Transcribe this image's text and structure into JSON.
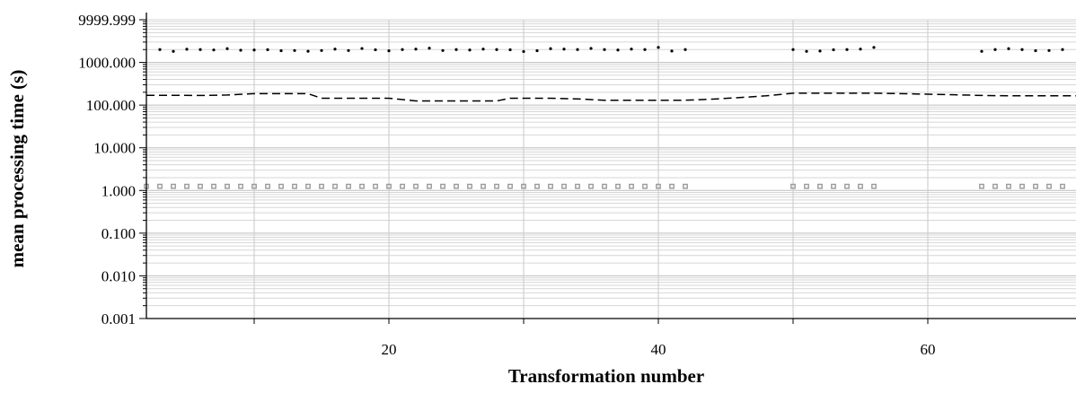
{
  "chart_data": {
    "type": "scatter",
    "xlabel": "Transformation number",
    "ylabel": "mean processing time (s)",
    "x_scale": "linear",
    "y_scale": "log",
    "xlim": [
      2,
      71
    ],
    "ylim": [
      0.001,
      9999.999
    ],
    "x_ticks": [
      {
        "value": 20,
        "label": "20"
      },
      {
        "value": 40,
        "label": "40"
      },
      {
        "value": 60,
        "label": "60"
      }
    ],
    "x_minor_ticks": [
      10,
      30,
      50
    ],
    "y_ticks": [
      {
        "value": 0.001,
        "label": "0.001"
      },
      {
        "value": 0.01,
        "label": "0.010"
      },
      {
        "value": 0.1,
        "label": "0.100"
      },
      {
        "value": 1,
        "label": "1.000"
      },
      {
        "value": 10,
        "label": "10.000"
      },
      {
        "value": 100,
        "label": "100.000"
      },
      {
        "value": 1000,
        "label": "1000.000"
      },
      {
        "value": 9999.999,
        "label": "9999.999"
      }
    ],
    "grid": true,
    "legend": "none",
    "series": [
      {
        "style": "dotted",
        "color": "#000000",
        "points": [
          [
            3,
            2000
          ],
          [
            4,
            1820
          ],
          [
            5,
            2040
          ],
          [
            6,
            2000
          ],
          [
            7,
            1960
          ],
          [
            8,
            2100
          ],
          [
            9,
            1930
          ],
          [
            10,
            1950
          ],
          [
            11,
            1990
          ],
          [
            12,
            1880
          ],
          [
            13,
            1900
          ],
          [
            14,
            1830
          ],
          [
            15,
            1900
          ],
          [
            16,
            2050
          ],
          [
            17,
            1900
          ],
          [
            18,
            2120
          ],
          [
            19,
            1980
          ],
          [
            20,
            1870
          ],
          [
            21,
            2000
          ],
          [
            22,
            2050
          ],
          [
            23,
            2150
          ],
          [
            24,
            1900
          ],
          [
            25,
            2000
          ],
          [
            26,
            1950
          ],
          [
            27,
            2050
          ],
          [
            28,
            2000
          ],
          [
            29,
            1980
          ],
          [
            30,
            1800
          ],
          [
            31,
            1880
          ],
          [
            32,
            2100
          ],
          [
            33,
            2050
          ],
          [
            34,
            2000
          ],
          [
            35,
            2130
          ],
          [
            36,
            2000
          ],
          [
            37,
            1950
          ],
          [
            38,
            2050
          ],
          [
            39,
            2000
          ],
          [
            40,
            2250
          ],
          [
            41,
            1850
          ],
          [
            42,
            2000
          ],
          [
            50,
            2000
          ],
          [
            51,
            1820
          ],
          [
            52,
            1850
          ],
          [
            53,
            1980
          ],
          [
            54,
            2000
          ],
          [
            55,
            2050
          ],
          [
            56,
            2250
          ],
          [
            64,
            1820
          ],
          [
            65,
            2000
          ],
          [
            66,
            2100
          ],
          [
            67,
            2000
          ],
          [
            68,
            1880
          ],
          [
            69,
            1900
          ],
          [
            70,
            2000
          ]
        ]
      },
      {
        "style": "dashed",
        "color": "#000000",
        "points": [
          [
            2,
            170
          ],
          [
            4,
            170
          ],
          [
            6,
            168
          ],
          [
            8,
            172
          ],
          [
            10,
            185
          ],
          [
            12,
            185
          ],
          [
            14,
            185
          ],
          [
            15,
            145
          ],
          [
            16,
            145
          ],
          [
            18,
            145
          ],
          [
            20,
            145
          ],
          [
            22,
            125
          ],
          [
            24,
            125
          ],
          [
            26,
            125
          ],
          [
            28,
            125
          ],
          [
            29,
            145
          ],
          [
            30,
            145
          ],
          [
            32,
            145
          ],
          [
            34,
            140
          ],
          [
            36,
            130
          ],
          [
            38,
            130
          ],
          [
            40,
            130
          ],
          [
            42,
            130
          ],
          [
            44,
            138
          ],
          [
            46,
            150
          ],
          [
            48,
            165
          ],
          [
            50,
            190
          ],
          [
            52,
            190
          ],
          [
            54,
            190
          ],
          [
            56,
            190
          ],
          [
            58,
            185
          ],
          [
            60,
            180
          ],
          [
            62,
            175
          ],
          [
            64,
            168
          ],
          [
            66,
            165
          ],
          [
            68,
            165
          ],
          [
            71,
            165
          ]
        ]
      },
      {
        "style": "square-markers",
        "color": "#999999",
        "points": [
          [
            2,
            1.25
          ],
          [
            3,
            1.25
          ],
          [
            4,
            1.25
          ],
          [
            5,
            1.25
          ],
          [
            6,
            1.25
          ],
          [
            7,
            1.25
          ],
          [
            8,
            1.25
          ],
          [
            9,
            1.25
          ],
          [
            10,
            1.25
          ],
          [
            11,
            1.25
          ],
          [
            12,
            1.25
          ],
          [
            13,
            1.25
          ],
          [
            14,
            1.25
          ],
          [
            15,
            1.25
          ],
          [
            16,
            1.25
          ],
          [
            17,
            1.25
          ],
          [
            18,
            1.25
          ],
          [
            19,
            1.25
          ],
          [
            20,
            1.25
          ],
          [
            21,
            1.25
          ],
          [
            22,
            1.25
          ],
          [
            23,
            1.25
          ],
          [
            24,
            1.25
          ],
          [
            25,
            1.25
          ],
          [
            26,
            1.25
          ],
          [
            27,
            1.25
          ],
          [
            28,
            1.25
          ],
          [
            29,
            1.25
          ],
          [
            30,
            1.25
          ],
          [
            31,
            1.25
          ],
          [
            32,
            1.25
          ],
          [
            33,
            1.25
          ],
          [
            34,
            1.25
          ],
          [
            35,
            1.25
          ],
          [
            36,
            1.25
          ],
          [
            37,
            1.25
          ],
          [
            38,
            1.25
          ],
          [
            39,
            1.25
          ],
          [
            40,
            1.25
          ],
          [
            41,
            1.25
          ],
          [
            42,
            1.25
          ],
          [
            50,
            1.25
          ],
          [
            51,
            1.25
          ],
          [
            52,
            1.25
          ],
          [
            53,
            1.25
          ],
          [
            54,
            1.25
          ],
          [
            55,
            1.25
          ],
          [
            56,
            1.25
          ],
          [
            64,
            1.25
          ],
          [
            65,
            1.25
          ],
          [
            66,
            1.25
          ],
          [
            67,
            1.25
          ],
          [
            68,
            1.25
          ],
          [
            69,
            1.25
          ],
          [
            70,
            1.25
          ]
        ]
      }
    ]
  }
}
